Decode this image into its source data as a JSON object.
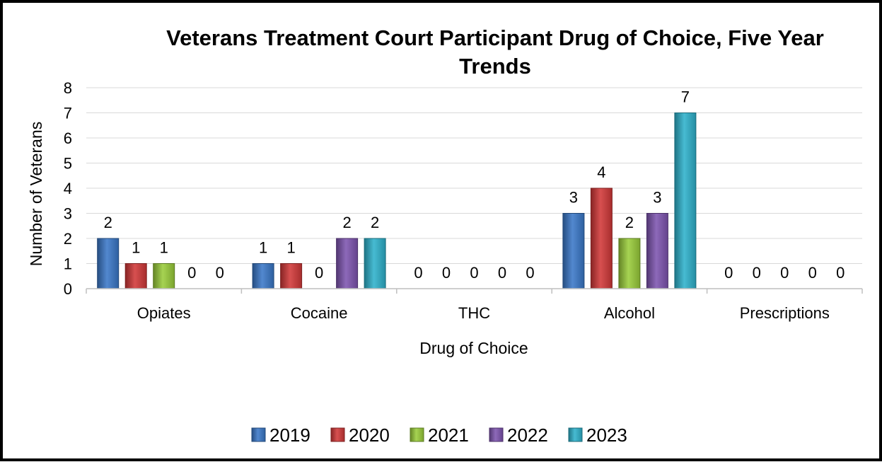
{
  "chart_data": {
    "type": "bar",
    "title_lines": [
      "Veterans Treatment Court Participant Drug of Choice, Five Year",
      "Trends"
    ],
    "xlabel": "Drug of Choice",
    "ylabel": "Number of Veterans",
    "categories": [
      "Opiates",
      "Cocaine",
      "THC",
      "Alcohol",
      "Prescriptions"
    ],
    "series": [
      {
        "name": "2019",
        "color": "#3a78c8",
        "values": [
          2,
          1,
          0,
          3,
          0
        ]
      },
      {
        "name": "2020",
        "color": "#d13838",
        "values": [
          1,
          1,
          0,
          4,
          0
        ]
      },
      {
        "name": "2021",
        "color": "#9acd3a",
        "values": [
          1,
          0,
          0,
          2,
          0
        ]
      },
      {
        "name": "2022",
        "color": "#7e54b0",
        "values": [
          0,
          2,
          0,
          3,
          0
        ]
      },
      {
        "name": "2023",
        "color": "#2eb2cc",
        "values": [
          0,
          2,
          0,
          7,
          0
        ]
      }
    ],
    "ylim": [
      0,
      8
    ],
    "yticks": [
      0,
      1,
      2,
      3,
      4,
      5,
      6,
      7,
      8
    ],
    "grid": true,
    "legend_position": "bottom",
    "data_labels": true
  }
}
